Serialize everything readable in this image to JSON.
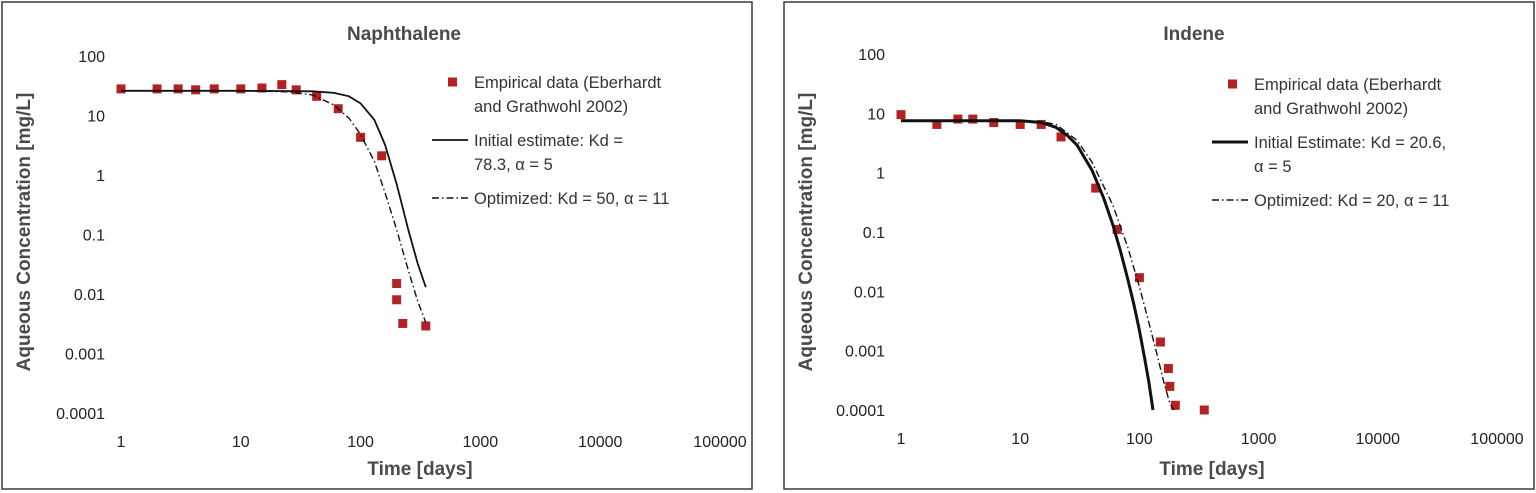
{
  "chart_data": [
    {
      "type": "scatter",
      "title": "Naphthalene",
      "xlabel": "Time [days]",
      "ylabel": "Aqueous Concentration  [mg/L]",
      "xscale": "log",
      "yscale": "log",
      "xlim": [
        1,
        100000
      ],
      "ylim": [
        0.0001,
        100
      ],
      "xticks": [
        "1",
        "10",
        "100",
        "1000",
        "10000",
        "100000"
      ],
      "yticks": [
        "100",
        "10",
        "1",
        "0.1",
        "0.01",
        "0.001",
        "0.0001"
      ],
      "grid": false,
      "legend_position": "top-right",
      "legend": [
        {
          "kind": "marker",
          "lines": [
            "Empirical data (Eberhardt",
            "and Grathwohl 2002)"
          ]
        },
        {
          "kind": "solid",
          "lines": [
            "Initial estimate:  Kd =",
            "78.3, α = 5"
          ]
        },
        {
          "kind": "dashdot",
          "lines": [
            "Optimized:  Kd = 50, α = 11"
          ]
        }
      ],
      "series": [
        {
          "kind": "marker",
          "color": "#b22222",
          "x": [
            1,
            2,
            3,
            4.2,
            6,
            10,
            15,
            22,
            29,
            43,
            65,
            100,
            150,
            200,
            200,
            225,
            350
          ],
          "y": [
            28,
            28,
            28,
            27,
            28,
            28,
            29,
            33,
            27,
            21,
            13,
            4.3,
            2.1,
            0.015,
            0.008,
            0.0032,
            0.0029
          ]
        },
        {
          "kind": "solid",
          "color": "#111111",
          "x": [
            1,
            10,
            40,
            60,
            80,
            100,
            130,
            160,
            200,
            250,
            300,
            350
          ],
          "y": [
            26,
            26,
            25.5,
            24,
            21,
            16,
            8.5,
            3.2,
            0.7,
            0.12,
            0.032,
            0.013
          ]
        },
        {
          "kind": "dashdot",
          "color": "#111111",
          "x": [
            1,
            10,
            25,
            40,
            60,
            80,
            100,
            130,
            160,
            200,
            250,
            300,
            350
          ],
          "y": [
            26,
            26,
            25,
            22,
            15,
            9,
            4.8,
            1.7,
            0.5,
            0.12,
            0.025,
            0.0075,
            0.0033
          ]
        }
      ]
    },
    {
      "type": "scatter",
      "title": "Indene",
      "xlabel": "Time [days]",
      "ylabel": "Aqueous Concentration  [mg/L]",
      "xscale": "log",
      "yscale": "log",
      "xlim": [
        1,
        100000
      ],
      "ylim": [
        0.0001,
        100
      ],
      "xticks": [
        "1",
        "10",
        "100",
        "1000",
        "10000",
        "100000"
      ],
      "yticks": [
        "100",
        "10",
        "1",
        "0.1",
        "0.01",
        "0.001",
        "0.0001"
      ],
      "grid": false,
      "legend_position": "top-right",
      "legend": [
        {
          "kind": "marker",
          "lines": [
            "Empirical data (Eberhardt",
            "and Grathwohl 2002)"
          ]
        },
        {
          "kind": "solid",
          "lines": [
            "Initial Estimate:  Kd = 20.6,",
            "α = 5"
          ]
        },
        {
          "kind": "dashdot",
          "lines": [
            "Optimized:  Kd = 20, α = 11"
          ]
        }
      ],
      "series": [
        {
          "kind": "marker",
          "color": "#b22222",
          "x": [
            1,
            2,
            3,
            4,
            6,
            10,
            15,
            22,
            43,
            65,
            100,
            150,
            175,
            180,
            200,
            350
          ],
          "y": [
            9.5,
            6.5,
            8,
            8,
            7,
            6.5,
            6.5,
            4,
            0.55,
            0.11,
            0.017,
            0.0014,
            0.0005,
            0.00025,
            0.00012,
            0.0001
          ]
        },
        {
          "kind": "solid",
          "color": "#111111",
          "x": [
            1,
            10,
            15,
            20,
            25,
            30,
            40,
            50,
            60,
            70,
            80,
            90,
            100,
            110,
            120,
            130
          ],
          "y": [
            7.5,
            7.5,
            7,
            5.8,
            4.2,
            2.9,
            1.1,
            0.38,
            0.13,
            0.045,
            0.016,
            0.006,
            0.0022,
            0.0008,
            0.0003,
            0.0001
          ]
        },
        {
          "kind": "dashdot",
          "color": "#111111",
          "x": [
            1,
            10,
            15,
            20,
            30,
            40,
            60,
            80,
            100,
            120,
            140,
            160,
            180,
            195
          ],
          "y": [
            7.5,
            7.5,
            7.2,
            6.5,
            3.5,
            1.5,
            0.28,
            0.055,
            0.012,
            0.003,
            0.0009,
            0.0003,
            0.00013,
            0.0001
          ]
        }
      ]
    }
  ]
}
